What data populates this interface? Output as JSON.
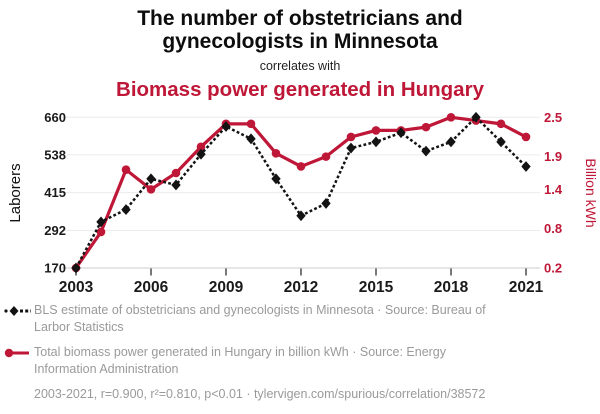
{
  "header": {
    "title_line1": "The number of obstetricians and",
    "title_line2": "gynecologists in Minnesota",
    "connector": "correlates with",
    "subtitle": "Biomass power generated in Hungary"
  },
  "colors": {
    "accent_red": "#bf1737",
    "series_black": "#131313",
    "gridline": "#ebebeb",
    "axis_line": "#cccccc",
    "tick_mark": "#4a4a4a",
    "tick_label": "#1a1a1a",
    "legend_gray": "#9a9a9a"
  },
  "chart_data": {
    "type": "line",
    "x": [
      2003,
      2004,
      2005,
      2006,
      2007,
      2008,
      2009,
      2010,
      2011,
      2012,
      2013,
      2014,
      2015,
      2016,
      2017,
      2018,
      2019,
      2020,
      2021
    ],
    "series": [
      {
        "name": "BLS estimate of obstetricians and gynecologists in Minnesota",
        "axis": "left",
        "color": "#131313",
        "marker": "diamond",
        "line_style": "dotted",
        "values": [
          170,
          320,
          360,
          460,
          440,
          540,
          630,
          590,
          460,
          340,
          380,
          560,
          580,
          610,
          550,
          580,
          660,
          580,
          500
        ]
      },
      {
        "name": "Total biomass power generated in Hungary in billion kWh",
        "axis": "right",
        "color": "#bf1737",
        "marker": "circle",
        "line_style": "solid",
        "values": [
          0.2,
          0.75,
          1.7,
          1.4,
          1.65,
          2.05,
          2.4,
          2.4,
          1.95,
          1.75,
          1.9,
          2.2,
          2.3,
          2.3,
          2.35,
          2.5,
          2.45,
          2.4,
          2.2
        ]
      }
    ],
    "left_axis": {
      "label": "Laborers",
      "ticks": [
        170,
        292,
        415,
        538,
        660
      ],
      "range": [
        170,
        660
      ]
    },
    "right_axis": {
      "label": "Billion kWh",
      "ticks": [
        0.2,
        0.8,
        1.4,
        1.9,
        2.5
      ],
      "range": [
        0.2,
        2.5
      ]
    },
    "x_ticks": [
      2003,
      2006,
      2009,
      2012,
      2015,
      2018,
      2021
    ],
    "grid": "horizontal",
    "legend_position": "bottom"
  },
  "legend": {
    "entries": [
      {
        "text": "BLS estimate of obstetricians and gynecologists in Minnesota · Source: Bureau of Larbor Statistics"
      },
      {
        "text": "Total biomass power generated in Hungary in billion kWh · Source: Energy Information Administration"
      }
    ],
    "footer": "2003-2021, r=0.900, r²=0.810, p<0.01 · tylervigen.com/spurious/correlation/38572"
  }
}
